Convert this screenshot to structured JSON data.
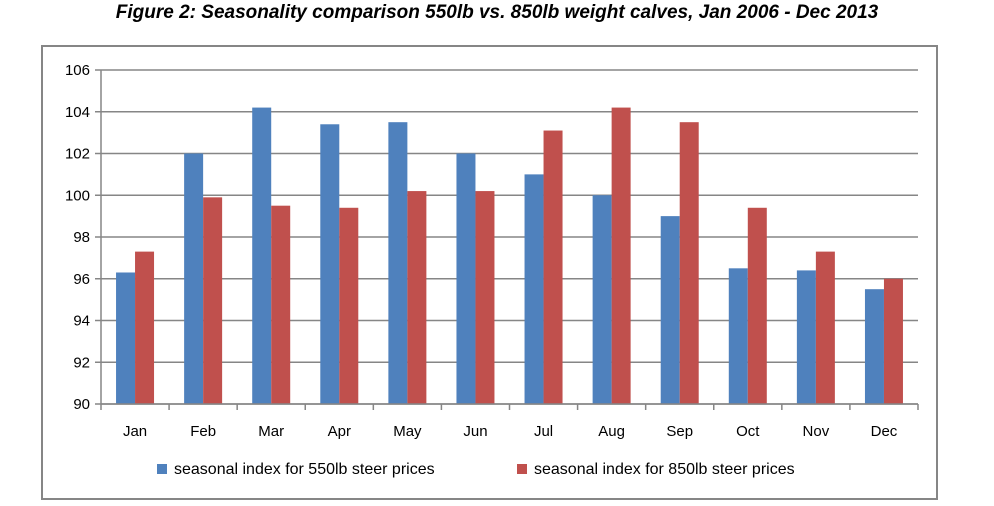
{
  "title": "Figure 2: Seasonality comparison 550lb vs. 850lb weight calves, Jan 2006 - Dec 2013",
  "chart_data": {
    "type": "bar",
    "categories": [
      "Jan",
      "Feb",
      "Mar",
      "Apr",
      "May",
      "Jun",
      "Jul",
      "Aug",
      "Sep",
      "Oct",
      "Nov",
      "Dec"
    ],
    "series": [
      {
        "name": "seasonal index for 550lb steer prices",
        "color": "#4F81BD",
        "values": [
          96.3,
          102.0,
          104.2,
          103.4,
          103.5,
          102.0,
          101.0,
          100.0,
          99.0,
          96.5,
          96.4,
          95.5
        ]
      },
      {
        "name": "seasonal index for 850lb steer prices",
        "color": "#C0504D",
        "values": [
          97.3,
          99.9,
          99.5,
          99.4,
          100.2,
          100.2,
          103.1,
          104.2,
          103.5,
          99.4,
          97.3,
          96.0
        ]
      }
    ],
    "xlabel": "",
    "ylabel": "",
    "ylim": [
      90,
      106
    ],
    "yticks": [
      90,
      92,
      94,
      96,
      98,
      100,
      102,
      104,
      106
    ],
    "grid": true,
    "legend": "bottom"
  }
}
